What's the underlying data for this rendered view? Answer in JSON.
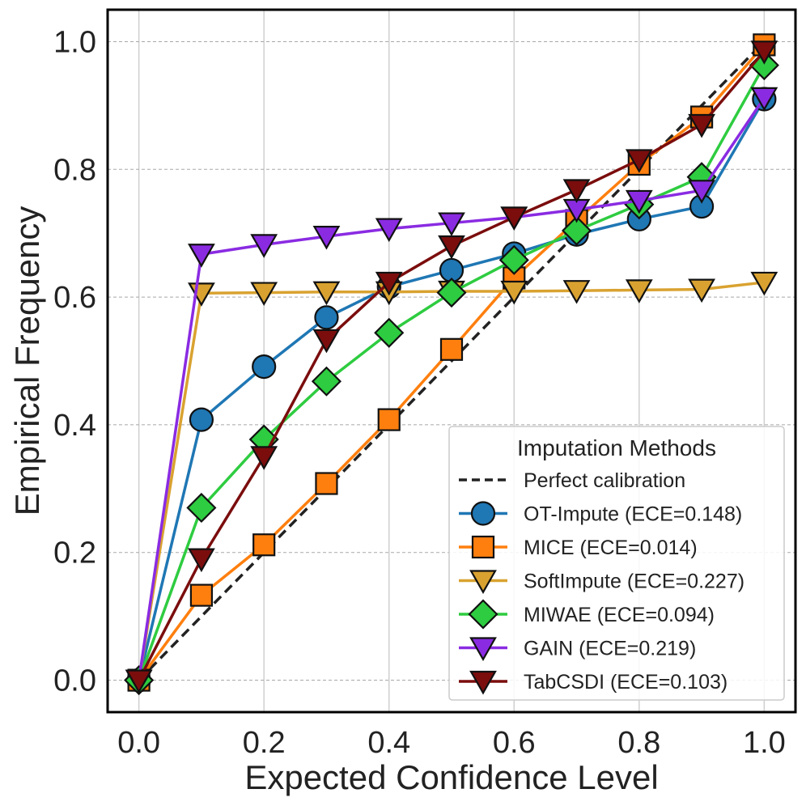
{
  "chart_data": {
    "type": "line",
    "title": "",
    "xlabel": "Expected Confidence Level",
    "ylabel": "Empirical Frequency",
    "xlim": [
      -0.05,
      1.05
    ],
    "ylim": [
      -0.05,
      1.05
    ],
    "xticks": [
      0.0,
      0.2,
      0.4,
      0.6,
      0.8,
      1.0
    ],
    "yticks": [
      0.0,
      0.2,
      0.4,
      0.6,
      0.8,
      1.0
    ],
    "xtick_labels": [
      "0.0",
      "0.2",
      "0.4",
      "0.6",
      "0.8",
      "1.0"
    ],
    "ytick_labels": [
      "0.0",
      "0.2",
      "0.4",
      "0.6",
      "0.8",
      "1.0"
    ],
    "grid": true,
    "legend": {
      "title": "Imputation Methods",
      "position": "lower-right"
    },
    "reference": {
      "name": "Perfect calibration",
      "x": [
        0,
        1
      ],
      "y": [
        0,
        1
      ],
      "color": "#222222",
      "style": "dashed"
    },
    "x": [
      0.0,
      0.1,
      0.2,
      0.3,
      0.4,
      0.5,
      0.6,
      0.7,
      0.8,
      0.9,
      1.0
    ],
    "series": [
      {
        "name": "OT-Impute (ECE=0.148)",
        "color": "#1f77b4",
        "marker": "circle",
        "values": [
          0.0,
          0.408,
          0.491,
          0.568,
          0.616,
          0.642,
          0.668,
          0.698,
          0.722,
          0.742,
          0.91
        ]
      },
      {
        "name": "MICE (ECE=0.014)",
        "color": "#ff7f0e",
        "marker": "square",
        "values": [
          0.0,
          0.133,
          0.212,
          0.308,
          0.408,
          0.518,
          0.63,
          0.72,
          0.808,
          0.882,
          0.995
        ]
      },
      {
        "name": "SoftImpute (ECE=0.227)",
        "color": "#d9a230",
        "marker": "triangle-down",
        "values": [
          0.0,
          0.606,
          0.607,
          0.608,
          0.608,
          0.609,
          0.609,
          0.61,
          0.611,
          0.612,
          0.623
        ]
      },
      {
        "name": "MIWAE (ECE=0.094)",
        "color": "#2ecc40",
        "marker": "diamond",
        "values": [
          0.0,
          0.27,
          0.377,
          0.468,
          0.544,
          0.607,
          0.658,
          0.704,
          0.745,
          0.788,
          0.963
        ]
      },
      {
        "name": "GAIN (ECE=0.219)",
        "color": "#8a2be2",
        "marker": "triangle-down",
        "values": [
          0.0,
          0.667,
          0.682,
          0.695,
          0.707,
          0.716,
          0.725,
          0.737,
          0.751,
          0.767,
          0.912
        ]
      },
      {
        "name": "TabCSDI (ECE=0.103)",
        "color": "#7b0d0d",
        "marker": "triangle-down",
        "values": [
          0.0,
          0.19,
          0.35,
          0.533,
          0.623,
          0.68,
          0.725,
          0.768,
          0.815,
          0.87,
          0.985
        ]
      }
    ]
  }
}
